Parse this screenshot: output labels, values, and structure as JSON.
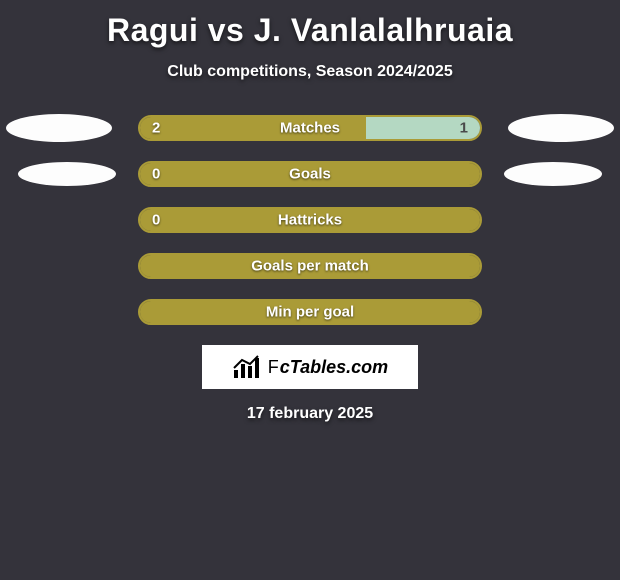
{
  "title": "Ragui vs J. Vanlalalhruaia",
  "subtitle": "Club competitions, Season 2024/2025",
  "date": "17 february 2025",
  "logo_text": "FcTables.com",
  "colors": {
    "background": "#34333b",
    "bar_dark": "#aa9b37",
    "bar_light": "#b4d8c2",
    "ellipse": "#fdfdfd",
    "text": "#ffffff"
  },
  "stats": [
    {
      "label": "Matches",
      "left_value": "2",
      "right_value": "1",
      "left_pct": 66.6,
      "right_pct": 33.4,
      "show_left_value": true,
      "show_right_value": true,
      "right_fill_color": "#b4d8c2",
      "left_ellipse": true,
      "right_ellipse": true,
      "ellipse_small": false
    },
    {
      "label": "Goals",
      "left_value": "0",
      "right_value": "",
      "left_pct": 100,
      "right_pct": 0,
      "show_left_value": true,
      "show_right_value": false,
      "right_fill_color": "#b4d8c2",
      "left_ellipse": true,
      "right_ellipse": true,
      "ellipse_small": true
    },
    {
      "label": "Hattricks",
      "left_value": "0",
      "right_value": "",
      "left_pct": 100,
      "right_pct": 0,
      "show_left_value": true,
      "show_right_value": false,
      "right_fill_color": "#b4d8c2",
      "left_ellipse": false,
      "right_ellipse": false,
      "ellipse_small": false
    },
    {
      "label": "Goals per match",
      "left_value": "",
      "right_value": "",
      "left_pct": 100,
      "right_pct": 0,
      "show_left_value": false,
      "show_right_value": false,
      "right_fill_color": "#b4d8c2",
      "left_ellipse": false,
      "right_ellipse": false,
      "ellipse_small": false
    },
    {
      "label": "Min per goal",
      "left_value": "",
      "right_value": "",
      "left_pct": 100,
      "right_pct": 0,
      "show_left_value": false,
      "show_right_value": false,
      "right_fill_color": "#b4d8c2",
      "left_ellipse": false,
      "right_ellipse": false,
      "ellipse_small": false
    }
  ]
}
